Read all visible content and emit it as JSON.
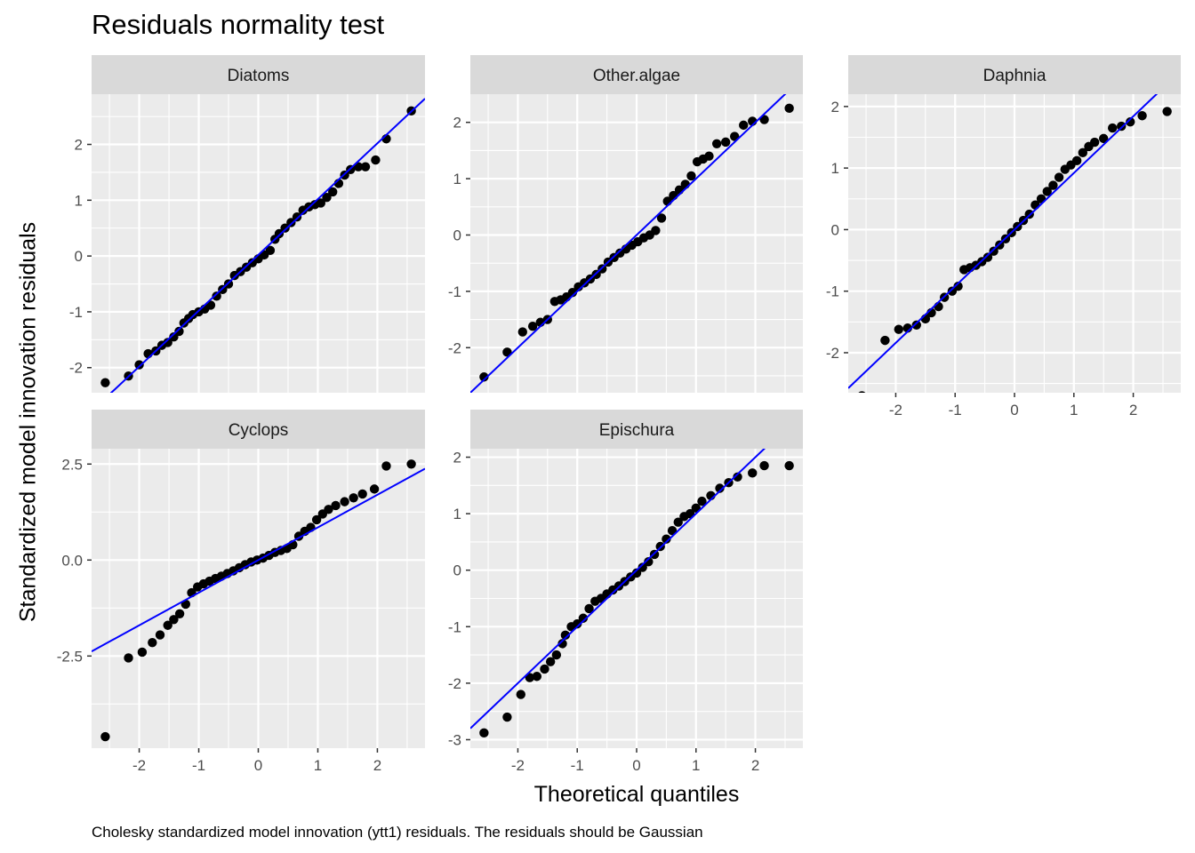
{
  "title": "Residuals normality test",
  "xlabel": "Theoretical quantiles",
  "ylabel": "Standardized model innovation residuals",
  "caption": "Cholesky standardized model innovation (ytt1) residuals. The residuals should be Gaussian",
  "colors": {
    "panel_bg": "#ebebeb",
    "strip_bg": "#d9d9d9",
    "grid": "#ffffff",
    "points": "#000000",
    "line": "#0000ff",
    "axis_text": "#4d4d4d"
  },
  "chart_data": [
    {
      "type": "scatter",
      "facet": "Diatoms",
      "xlim": [
        -2.8,
        2.8
      ],
      "ylim": [
        -2.45,
        2.9
      ],
      "xticks": [
        -2,
        -1,
        0,
        1,
        2
      ],
      "yticks": [
        -2,
        -1,
        0,
        1,
        2
      ],
      "xtick_labels": [
        "-2",
        "-1",
        "0",
        "1",
        "2"
      ],
      "ytick_labels": [
        "-2",
        "-1",
        "0",
        "1",
        "2"
      ],
      "line": {
        "intercept": 0.02,
        "slope": 1.0
      },
      "points": [
        [
          -2.57,
          -2.27
        ],
        [
          -2.18,
          -2.15
        ],
        [
          -2.0,
          -1.95
        ],
        [
          -1.85,
          -1.75
        ],
        [
          -1.72,
          -1.7
        ],
        [
          -1.62,
          -1.6
        ],
        [
          -1.52,
          -1.55
        ],
        [
          -1.42,
          -1.45
        ],
        [
          -1.33,
          -1.35
        ],
        [
          -1.25,
          -1.2
        ],
        [
          -1.17,
          -1.12
        ],
        [
          -1.1,
          -1.05
        ],
        [
          -1.0,
          -1.0
        ],
        [
          -0.9,
          -0.95
        ],
        [
          -0.8,
          -0.88
        ],
        [
          -0.7,
          -0.72
        ],
        [
          -0.6,
          -0.6
        ],
        [
          -0.5,
          -0.5
        ],
        [
          -0.4,
          -0.35
        ],
        [
          -0.3,
          -0.28
        ],
        [
          -0.2,
          -0.2
        ],
        [
          -0.1,
          -0.12
        ],
        [
          0.0,
          -0.05
        ],
        [
          0.1,
          0.02
        ],
        [
          0.2,
          0.1
        ],
        [
          0.28,
          0.3
        ],
        [
          0.35,
          0.4
        ],
        [
          0.45,
          0.5
        ],
        [
          0.55,
          0.6
        ],
        [
          0.65,
          0.7
        ],
        [
          0.75,
          0.82
        ],
        [
          0.85,
          0.88
        ],
        [
          0.95,
          0.92
        ],
        [
          1.05,
          0.95
        ],
        [
          1.15,
          1.05
        ],
        [
          1.25,
          1.15
        ],
        [
          1.35,
          1.3
        ],
        [
          1.45,
          1.45
        ],
        [
          1.55,
          1.55
        ],
        [
          1.68,
          1.6
        ],
        [
          1.8,
          1.6
        ],
        [
          1.97,
          1.72
        ],
        [
          2.15,
          2.1
        ],
        [
          2.57,
          2.6
        ]
      ]
    },
    {
      "type": "scatter",
      "facet": "Other.algae",
      "xlim": [
        -2.8,
        2.8
      ],
      "ylim": [
        -2.8,
        2.5
      ],
      "xticks": [
        -2,
        -1,
        0,
        1,
        2
      ],
      "yticks": [
        -2,
        -1,
        0,
        1,
        2
      ],
      "xtick_labels": [
        "-2",
        "-1",
        "0",
        "1",
        "2"
      ],
      "ytick_labels": [
        "-2",
        "-1",
        "0",
        "1",
        "2"
      ],
      "line": {
        "intercept": 0.0,
        "slope": 1.0
      },
      "points": [
        [
          -2.57,
          -2.52
        ],
        [
          -2.18,
          -2.08
        ],
        [
          -1.92,
          -1.72
        ],
        [
          -1.75,
          -1.62
        ],
        [
          -1.62,
          -1.55
        ],
        [
          -1.5,
          -1.5
        ],
        [
          -1.38,
          -1.18
        ],
        [
          -1.28,
          -1.15
        ],
        [
          -1.18,
          -1.1
        ],
        [
          -1.08,
          -1.02
        ],
        [
          -0.98,
          -0.92
        ],
        [
          -0.88,
          -0.85
        ],
        [
          -0.78,
          -0.78
        ],
        [
          -0.68,
          -0.7
        ],
        [
          -0.58,
          -0.6
        ],
        [
          -0.48,
          -0.48
        ],
        [
          -0.38,
          -0.4
        ],
        [
          -0.28,
          -0.32
        ],
        [
          -0.18,
          -0.25
        ],
        [
          -0.08,
          -0.18
        ],
        [
          0.02,
          -0.12
        ],
        [
          0.12,
          -0.05
        ],
        [
          0.22,
          0.0
        ],
        [
          0.32,
          0.08
        ],
        [
          0.42,
          0.3
        ],
        [
          0.52,
          0.6
        ],
        [
          0.62,
          0.7
        ],
        [
          0.72,
          0.8
        ],
        [
          0.82,
          0.9
        ],
        [
          0.92,
          1.05
        ],
        [
          1.02,
          1.3
        ],
        [
          1.12,
          1.35
        ],
        [
          1.22,
          1.4
        ],
        [
          1.35,
          1.62
        ],
        [
          1.5,
          1.65
        ],
        [
          1.65,
          1.75
        ],
        [
          1.8,
          1.95
        ],
        [
          1.95,
          2.02
        ],
        [
          2.15,
          2.05
        ],
        [
          2.57,
          2.25
        ]
      ]
    },
    {
      "type": "scatter",
      "facet": "Daphnia",
      "xlim": [
        -2.8,
        2.8
      ],
      "ylim": [
        -2.65,
        2.2
      ],
      "xticks": [
        -2,
        -1,
        0,
        1,
        2
      ],
      "yticks": [
        -2,
        -1,
        0,
        1,
        2
      ],
      "xtick_labels": [
        "-2",
        "-1",
        "0",
        "1",
        "2"
      ],
      "ytick_labels": [
        "-2",
        "-1",
        "0",
        "1",
        "2"
      ],
      "line": {
        "intercept": 0.0,
        "slope": 0.92
      },
      "points": [
        [
          -2.57,
          -2.7
        ],
        [
          -2.18,
          -1.8
        ],
        [
          -1.95,
          -1.62
        ],
        [
          -1.8,
          -1.6
        ],
        [
          -1.65,
          -1.55
        ],
        [
          -1.5,
          -1.45
        ],
        [
          -1.4,
          -1.35
        ],
        [
          -1.28,
          -1.25
        ],
        [
          -1.18,
          -1.1
        ],
        [
          -1.05,
          -1.0
        ],
        [
          -0.95,
          -0.92
        ],
        [
          -0.85,
          -0.65
        ],
        [
          -0.75,
          -0.62
        ],
        [
          -0.65,
          -0.58
        ],
        [
          -0.55,
          -0.52
        ],
        [
          -0.45,
          -0.45
        ],
        [
          -0.35,
          -0.35
        ],
        [
          -0.25,
          -0.25
        ],
        [
          -0.15,
          -0.15
        ],
        [
          -0.05,
          -0.05
        ],
        [
          0.05,
          0.05
        ],
        [
          0.15,
          0.15
        ],
        [
          0.25,
          0.25
        ],
        [
          0.35,
          0.4
        ],
        [
          0.45,
          0.5
        ],
        [
          0.55,
          0.62
        ],
        [
          0.65,
          0.72
        ],
        [
          0.75,
          0.85
        ],
        [
          0.85,
          0.98
        ],
        [
          0.95,
          1.05
        ],
        [
          1.05,
          1.12
        ],
        [
          1.15,
          1.25
        ],
        [
          1.25,
          1.35
        ],
        [
          1.35,
          1.42
        ],
        [
          1.5,
          1.48
        ],
        [
          1.65,
          1.65
        ],
        [
          1.8,
          1.68
        ],
        [
          1.95,
          1.75
        ],
        [
          2.15,
          1.85
        ],
        [
          2.57,
          1.92
        ]
      ]
    },
    {
      "type": "scatter",
      "facet": "Cyclops",
      "xlim": [
        -2.8,
        2.8
      ],
      "ylim": [
        -4.9,
        2.9
      ],
      "xticks": [
        -2,
        -1,
        0,
        1,
        2
      ],
      "yticks": [
        -2.5,
        0.0,
        2.5
      ],
      "xtick_labels": [
        "-2",
        "-1",
        "0",
        "1",
        "2"
      ],
      "ytick_labels": [
        "-2.5",
        "0.0",
        "2.5"
      ],
      "line": {
        "intercept": 0.0,
        "slope": 0.85
      },
      "points": [
        [
          -2.57,
          -4.6
        ],
        [
          -2.18,
          -2.55
        ],
        [
          -1.95,
          -2.4
        ],
        [
          -1.78,
          -2.15
        ],
        [
          -1.65,
          -1.95
        ],
        [
          -1.52,
          -1.7
        ],
        [
          -1.42,
          -1.55
        ],
        [
          -1.32,
          -1.4
        ],
        [
          -1.22,
          -1.15
        ],
        [
          -1.12,
          -0.85
        ],
        [
          -1.02,
          -0.7
        ],
        [
          -0.92,
          -0.62
        ],
        [
          -0.82,
          -0.55
        ],
        [
          -0.72,
          -0.48
        ],
        [
          -0.62,
          -0.42
        ],
        [
          -0.52,
          -0.35
        ],
        [
          -0.42,
          -0.28
        ],
        [
          -0.32,
          -0.2
        ],
        [
          -0.22,
          -0.12
        ],
        [
          -0.12,
          -0.05
        ],
        [
          -0.02,
          0.0
        ],
        [
          0.08,
          0.05
        ],
        [
          0.18,
          0.12
        ],
        [
          0.28,
          0.2
        ],
        [
          0.38,
          0.25
        ],
        [
          0.48,
          0.3
        ],
        [
          0.58,
          0.4
        ],
        [
          0.68,
          0.62
        ],
        [
          0.78,
          0.75
        ],
        [
          0.88,
          0.85
        ],
        [
          0.98,
          1.05
        ],
        [
          1.08,
          1.2
        ],
        [
          1.18,
          1.32
        ],
        [
          1.3,
          1.42
        ],
        [
          1.45,
          1.52
        ],
        [
          1.6,
          1.62
        ],
        [
          1.75,
          1.72
        ],
        [
          1.95,
          1.85
        ],
        [
          2.15,
          2.45
        ],
        [
          2.57,
          2.5
        ]
      ]
    },
    {
      "type": "scatter",
      "facet": "Epischura",
      "xlim": [
        -2.8,
        2.8
      ],
      "ylim": [
        -3.15,
        2.15
      ],
      "xticks": [
        -2,
        -1,
        0,
        1,
        2
      ],
      "yticks": [
        -3,
        -2,
        -1,
        0,
        1,
        2
      ],
      "xtick_labels": [
        "-2",
        "-1",
        "0",
        "1",
        "2"
      ],
      "ytick_labels": [
        "-3",
        "-2",
        "-1",
        "0",
        "1",
        "2"
      ],
      "line": {
        "intercept": 0.0,
        "slope": 1.0
      },
      "points": [
        [
          -2.57,
          -2.88
        ],
        [
          -2.18,
          -2.6
        ],
        [
          -1.95,
          -2.2
        ],
        [
          -1.8,
          -1.9
        ],
        [
          -1.68,
          -1.88
        ],
        [
          -1.55,
          -1.75
        ],
        [
          -1.45,
          -1.62
        ],
        [
          -1.35,
          -1.5
        ],
        [
          -1.25,
          -1.3
        ],
        [
          -1.2,
          -1.15
        ],
        [
          -1.1,
          -1.0
        ],
        [
          -1.0,
          -0.95
        ],
        [
          -0.9,
          -0.85
        ],
        [
          -0.8,
          -0.68
        ],
        [
          -0.7,
          -0.55
        ],
        [
          -0.6,
          -0.5
        ],
        [
          -0.5,
          -0.42
        ],
        [
          -0.4,
          -0.35
        ],
        [
          -0.3,
          -0.28
        ],
        [
          -0.2,
          -0.2
        ],
        [
          -0.1,
          -0.12
        ],
        [
          0.0,
          -0.05
        ],
        [
          0.1,
          0.05
        ],
        [
          0.2,
          0.15
        ],
        [
          0.3,
          0.28
        ],
        [
          0.4,
          0.42
        ],
        [
          0.5,
          0.55
        ],
        [
          0.6,
          0.7
        ],
        [
          0.7,
          0.85
        ],
        [
          0.8,
          0.95
        ],
        [
          0.9,
          1.0
        ],
        [
          1.0,
          1.1
        ],
        [
          1.1,
          1.22
        ],
        [
          1.25,
          1.32
        ],
        [
          1.4,
          1.45
        ],
        [
          1.55,
          1.55
        ],
        [
          1.7,
          1.65
        ],
        [
          1.95,
          1.72
        ],
        [
          2.15,
          1.85
        ],
        [
          2.57,
          1.85
        ]
      ]
    }
  ]
}
